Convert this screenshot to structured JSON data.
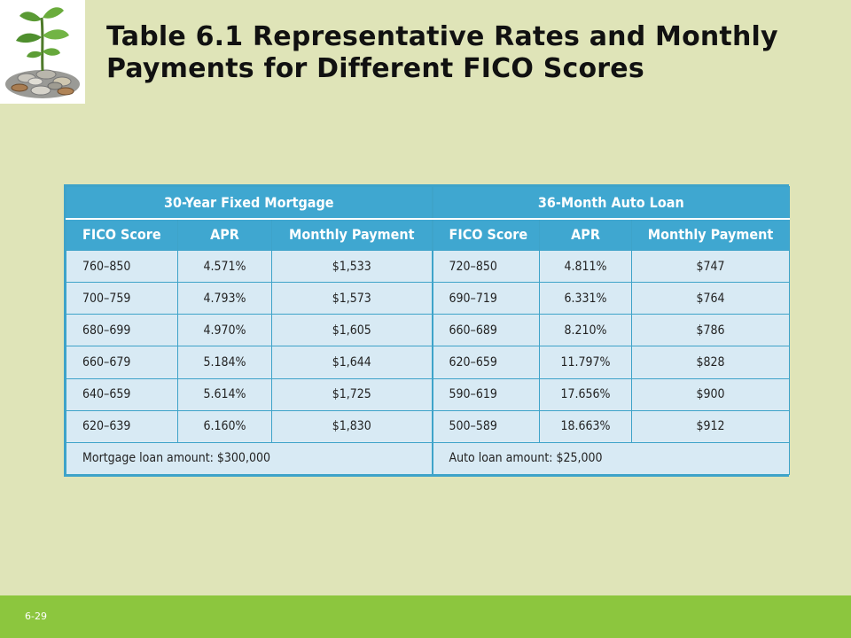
{
  "title": {
    "line1": "Table 6.1  Representative Rates and Monthly",
    "line2": "Payments for Different FICO Scores"
  },
  "logo": {
    "icon": "plant-growing-from-coins-icon"
  },
  "table": {
    "groups": [
      "30-Year Fixed Mortgage",
      "36-Month Auto Loan"
    ],
    "headers": [
      "FICO Score",
      "APR",
      "Monthly Payment",
      "FICO Score",
      "APR",
      "Monthly Payment"
    ],
    "rows": [
      [
        "760–850",
        "4.571%",
        "$1,533",
        "720–850",
        "4.811%",
        "$747"
      ],
      [
        "700–759",
        "4.793%",
        "$1,573",
        "690–719",
        "6.331%",
        "$764"
      ],
      [
        "680–699",
        "4.970%",
        "$1,605",
        "660–689",
        "8.210%",
        "$786"
      ],
      [
        "660–679",
        "5.184%",
        "$1,644",
        "620–659",
        "11.797%",
        "$828"
      ],
      [
        "640–659",
        "5.614%",
        "$1,725",
        "590–619",
        "17.656%",
        "$900"
      ],
      [
        "620–639",
        "6.160%",
        "$1,830",
        "500–589",
        "18.663%",
        "$912"
      ]
    ],
    "notes": [
      "Mortgage loan amount: $300,000",
      "Auto loan amount: $25,000"
    ]
  },
  "footer": {
    "slide_number": "6-29"
  },
  "colors": {
    "background": "#dfe4b8",
    "header": "#3fa7d0",
    "cell": "#d8eaf4",
    "footer_bar": "#8cc63e"
  }
}
